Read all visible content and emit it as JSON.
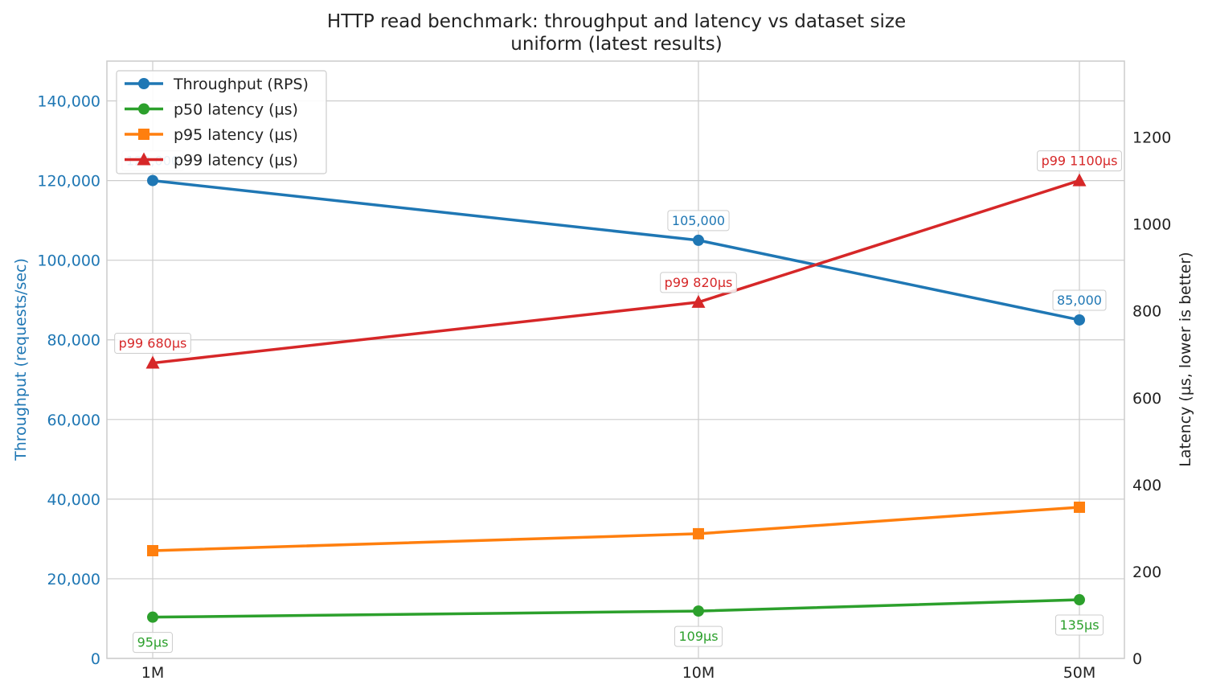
{
  "chart_data": {
    "type": "line",
    "title": "HTTP read benchmark: throughput and latency vs dataset size",
    "subtitle": "uniform (latest results)",
    "categories": [
      "1M",
      "10M",
      "50M"
    ],
    "y_left": {
      "label": "Throughput (requests/sec)",
      "range": [
        0,
        150000
      ],
      "ticks": [
        0,
        20000,
        40000,
        60000,
        80000,
        100000,
        120000,
        140000
      ],
      "tick_labels": [
        "0",
        "20,000",
        "40,000",
        "60,000",
        "80,000",
        "100,000",
        "120,000",
        "140,000"
      ],
      "color": "#1f77b4"
    },
    "y_right": {
      "label": "Latency (µs, lower is better)",
      "range": [
        0,
        1375
      ],
      "ticks": [
        0,
        200,
        400,
        600,
        800,
        1000,
        1200
      ],
      "tick_labels": [
        "0",
        "200",
        "400",
        "600",
        "800",
        "1000",
        "1200"
      ],
      "color": "#222222"
    },
    "grid": true,
    "legend_position": "top-left",
    "series": [
      {
        "name": "Throughput (RPS)",
        "axis": "left",
        "color": "#1f77b4",
        "marker": "circle",
        "values": [
          120000,
          105000,
          85000
        ],
        "labels": [
          "120,000",
          "105,000",
          "85,000"
        ],
        "label_position": "above"
      },
      {
        "name": "p50 latency (µs)",
        "axis": "right",
        "color": "#2ca02c",
        "marker": "circle",
        "values": [
          95,
          109,
          135
        ],
        "labels": [
          "95µs",
          "109µs",
          "135µs"
        ],
        "label_position": "below"
      },
      {
        "name": "p95 latency (µs)",
        "axis": "right",
        "color": "#ff7f0e",
        "marker": "square",
        "values": [
          248,
          287,
          348
        ],
        "labels": [],
        "label_position": "none"
      },
      {
        "name": "p99 latency (µs)",
        "axis": "right",
        "color": "#d62728",
        "marker": "triangle",
        "values": [
          680,
          820,
          1100
        ],
        "labels": [
          "p99 680µs",
          "p99 820µs",
          "p99 1100µs"
        ],
        "label_position": "above"
      }
    ]
  }
}
